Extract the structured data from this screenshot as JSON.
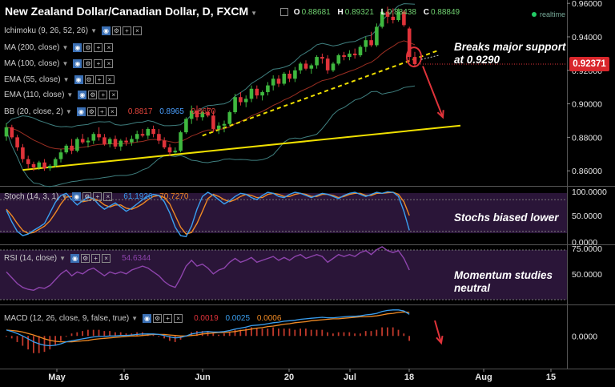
{
  "header": {
    "title": "New Zealand Dollar/Canadian Dollar, D, FXCM",
    "ohlc": [
      {
        "key": "O",
        "value": "0.88681"
      },
      {
        "key": "H",
        "value": "0.89321"
      },
      {
        "key": "L",
        "value": "0.88438"
      },
      {
        "key": "C",
        "value": "0.88849"
      }
    ],
    "realtime": "realtime"
  },
  "indicators": [
    {
      "label": "Ichimoku (9, 26, 52, 26)"
    },
    {
      "label": "MA (200, close)"
    },
    {
      "label": "MA (100, close)"
    },
    {
      "label": "EMA (55, close)"
    },
    {
      "label": "EMA (110, close)"
    },
    {
      "label": "BB (20, close, 2)",
      "values": [
        "0.8817",
        "0.8965",
        "0.8670"
      ],
      "colors": [
        "#e8463c",
        "#4aa0ff",
        "#e8463c"
      ]
    }
  ],
  "price_badge": "0.92371",
  "annotations": {
    "support": [
      "Breaks major support",
      "at 0.9290"
    ],
    "stoch": [
      "Stochs biased lower"
    ],
    "momentum": [
      "Momentum studies",
      "neutral"
    ]
  },
  "colors": {
    "up_candle": "#3fb83f",
    "down_candle": "#e0333a",
    "trendline": "#f0e000",
    "bb": "#3f7f7f",
    "ema": "#c0392b",
    "stoch_k": "#3a9ff0",
    "stoch_d": "#f08a24",
    "rsi": "#8e44ad",
    "macd": "#3a9ff0",
    "signal": "#f08a24",
    "hist": "#c0392b",
    "arrow": "#e0333a",
    "panel_bg": "#2a1538"
  },
  "chart_data": [
    {
      "type": "candlestick",
      "title": "New Zealand Dollar/Canadian Dollar, D, FXCM",
      "x_ticks": [
        "May",
        "16",
        "Jun",
        "20",
        "Jul",
        "18",
        "Aug",
        "15"
      ],
      "y_ticks": [
        "0.86000",
        "0.88000",
        "0.90000",
        "0.92000",
        "0.94000",
        "0.96000"
      ],
      "ylim": [
        0.851,
        0.962
      ],
      "last_price": 0.92371,
      "candles": [
        [
          0.8805,
          0.8885,
          0.878,
          0.886
        ],
        [
          0.886,
          0.8875,
          0.879,
          0.88
        ],
        [
          0.88,
          0.8815,
          0.872,
          0.874
        ],
        [
          0.874,
          0.876,
          0.865,
          0.867
        ],
        [
          0.867,
          0.869,
          0.8615,
          0.864
        ],
        [
          0.864,
          0.8655,
          0.86,
          0.862
        ],
        [
          0.862,
          0.866,
          0.8605,
          0.865
        ],
        [
          0.865,
          0.867,
          0.86,
          0.8615
        ],
        [
          0.8615,
          0.864,
          0.86,
          0.863
        ],
        [
          0.863,
          0.868,
          0.862,
          0.867
        ],
        [
          0.867,
          0.873,
          0.865,
          0.871
        ],
        [
          0.871,
          0.876,
          0.87,
          0.875
        ],
        [
          0.875,
          0.879,
          0.87,
          0.872
        ],
        [
          0.872,
          0.88,
          0.871,
          0.879
        ],
        [
          0.879,
          0.882,
          0.876,
          0.877
        ],
        [
          0.877,
          0.88,
          0.874,
          0.878
        ],
        [
          0.878,
          0.883,
          0.876,
          0.882
        ],
        [
          0.882,
          0.886,
          0.878,
          0.88
        ],
        [
          0.88,
          0.882,
          0.875,
          0.876
        ],
        [
          0.876,
          0.88,
          0.874,
          0.879
        ],
        [
          0.879,
          0.881,
          0.873,
          0.8745
        ],
        [
          0.8745,
          0.879,
          0.872,
          0.878
        ],
        [
          0.878,
          0.88,
          0.875,
          0.877
        ],
        [
          0.877,
          0.881,
          0.875,
          0.879
        ],
        [
          0.879,
          0.884,
          0.877,
          0.882
        ],
        [
          0.882,
          0.885,
          0.88,
          0.881
        ],
        [
          0.881,
          0.886,
          0.879,
          0.885
        ],
        [
          0.885,
          0.887,
          0.88,
          0.882
        ],
        [
          0.882,
          0.885,
          0.876,
          0.878
        ],
        [
          0.878,
          0.88,
          0.873,
          0.874
        ],
        [
          0.874,
          0.876,
          0.869,
          0.871
        ],
        [
          0.871,
          0.874,
          0.87,
          0.872
        ],
        [
          0.872,
          0.884,
          0.871,
          0.883
        ],
        [
          0.883,
          0.892,
          0.882,
          0.891
        ],
        [
          0.891,
          0.899,
          0.888,
          0.896
        ],
        [
          0.896,
          0.899,
          0.89,
          0.892
        ],
        [
          0.892,
          0.896,
          0.89,
          0.895
        ],
        [
          0.895,
          0.898,
          0.892,
          0.893
        ],
        [
          0.893,
          0.896,
          0.883,
          0.885
        ],
        [
          0.885,
          0.889,
          0.882,
          0.887
        ],
        [
          0.887,
          0.89,
          0.883,
          0.888
        ],
        [
          0.888,
          0.896,
          0.887,
          0.895
        ],
        [
          0.895,
          0.906,
          0.894,
          0.904
        ],
        [
          0.904,
          0.907,
          0.899,
          0.901
        ],
        [
          0.901,
          0.905,
          0.898,
          0.903
        ],
        [
          0.903,
          0.911,
          0.901,
          0.909
        ],
        [
          0.909,
          0.911,
          0.903,
          0.905
        ],
        [
          0.905,
          0.908,
          0.902,
          0.907
        ],
        [
          0.907,
          0.913,
          0.905,
          0.911
        ],
        [
          0.911,
          0.917,
          0.908,
          0.915
        ],
        [
          0.915,
          0.917,
          0.91,
          0.912
        ],
        [
          0.912,
          0.919,
          0.911,
          0.918
        ],
        [
          0.918,
          0.92,
          0.913,
          0.915
        ],
        [
          0.915,
          0.922,
          0.913,
          0.92
        ],
        [
          0.92,
          0.925,
          0.918,
          0.924
        ],
        [
          0.924,
          0.926,
          0.92,
          0.921
        ],
        [
          0.921,
          0.924,
          0.918,
          0.923
        ],
        [
          0.923,
          0.929,
          0.921,
          0.928
        ],
        [
          0.928,
          0.93,
          0.924,
          0.927
        ],
        [
          0.927,
          0.929,
          0.918,
          0.92
        ],
        [
          0.92,
          0.925,
          0.919,
          0.924
        ],
        [
          0.924,
          0.93,
          0.923,
          0.929
        ],
        [
          0.929,
          0.931,
          0.926,
          0.928
        ],
        [
          0.928,
          0.932,
          0.926,
          0.93
        ],
        [
          0.93,
          0.933,
          0.927,
          0.929
        ],
        [
          0.929,
          0.935,
          0.928,
          0.934
        ],
        [
          0.934,
          0.94,
          0.931,
          0.938
        ],
        [
          0.938,
          0.943,
          0.934,
          0.935
        ],
        [
          0.935,
          0.948,
          0.934,
          0.946
        ],
        [
          0.946,
          0.957,
          0.945,
          0.955
        ],
        [
          0.955,
          0.958,
          0.948,
          0.952
        ],
        [
          0.952,
          0.957,
          0.948,
          0.95
        ],
        [
          0.95,
          0.957,
          0.949,
          0.955
        ],
        [
          0.955,
          0.956,
          0.946,
          0.947
        ],
        [
          0.945,
          0.946,
          0.925,
          0.928
        ],
        [
          0.928,
          0.931,
          0.922,
          0.9237
        ]
      ]
    },
    {
      "type": "line",
      "title": "Stoch (14, 3, 1)",
      "values_printed": [
        "61.1926",
        "70.7270"
      ],
      "y_ticks": [
        "100.0000",
        "50.0000",
        "0.0000"
      ],
      "ylim": [
        0,
        100
      ],
      "series": [
        {
          "name": "%K",
          "values": [
            60,
            38,
            20,
            12,
            15,
            22,
            28,
            35,
            55,
            75,
            88,
            92,
            80,
            70,
            78,
            85,
            82,
            70,
            62,
            68,
            74,
            66,
            58,
            64,
            72,
            80,
            86,
            90,
            88,
            76,
            55,
            28,
            12,
            10,
            30,
            62,
            86,
            94,
            88,
            80,
            72,
            78,
            86,
            92,
            90,
            84,
            80,
            88,
            94,
            92,
            86,
            84,
            90,
            94,
            92,
            88,
            84,
            88,
            92,
            90,
            86,
            82,
            88,
            92,
            94,
            90,
            86,
            90,
            94,
            92,
            95,
            94,
            86,
            58,
            22
          ]
        },
        {
          "name": "%D",
          "values": [
            62,
            50,
            35,
            22,
            16,
            18,
            24,
            30,
            40,
            55,
            72,
            85,
            86,
            80,
            76,
            78,
            82,
            78,
            70,
            66,
            70,
            70,
            64,
            62,
            66,
            72,
            80,
            86,
            88,
            84,
            72,
            50,
            28,
            15,
            18,
            35,
            58,
            82,
            90,
            86,
            80,
            76,
            80,
            86,
            90,
            88,
            84,
            84,
            90,
            92,
            90,
            86,
            86,
            90,
            92,
            90,
            86,
            86,
            90,
            90,
            88,
            84,
            86,
            90,
            92,
            92,
            88,
            88,
            92,
            92,
            93,
            94,
            90,
            76,
            50
          ]
        }
      ]
    },
    {
      "type": "line",
      "title": "RSI (14, close)",
      "values_printed": [
        "54.6344"
      ],
      "y_ticks": [
        "75.0000",
        "50.0000"
      ],
      "ylim": [
        20,
        78
      ],
      "series": [
        {
          "name": "RSI",
          "values": [
            52,
            46,
            40,
            36,
            34,
            33,
            36,
            35,
            38,
            44,
            50,
            54,
            48,
            52,
            50,
            54,
            56,
            52,
            48,
            52,
            50,
            52,
            50,
            54,
            56,
            58,
            56,
            52,
            48,
            42,
            38,
            36,
            46,
            58,
            64,
            58,
            60,
            56,
            50,
            54,
            56,
            62,
            66,
            62,
            64,
            67,
            62,
            64,
            66,
            68,
            64,
            67,
            64,
            68,
            70,
            66,
            68,
            70,
            68,
            62,
            66,
            70,
            68,
            70,
            68,
            72,
            74,
            70,
            75,
            78,
            74,
            72,
            74,
            66,
            54
          ]
        }
      ]
    },
    {
      "type": "bar",
      "title": "MACD (12, 26, close, 9, false, true)",
      "values_printed": [
        "0.0019",
        "0.0025",
        "0.0006"
      ],
      "y_ticks": [
        "0.0000"
      ],
      "ylim": [
        -0.006,
        0.0056
      ],
      "series": [
        {
          "name": "MACD",
          "values": [
            0.0012,
            0.0009,
            0.0005,
            0.0,
            -0.0006,
            -0.0012,
            -0.0016,
            -0.0019,
            -0.002,
            -0.0019,
            -0.0016,
            -0.0012,
            -0.001,
            -0.0008,
            -0.0006,
            -0.0004,
            -0.0002,
            -0.0001,
            -0.0001,
            0.0,
            0.0,
            0.0001,
            0.0001,
            0.0002,
            0.0003,
            0.0004,
            0.0004,
            0.0004,
            0.0003,
            0.0001,
            -0.0002,
            -0.0004,
            -0.0003,
            0.0,
            0.0004,
            0.0006,
            0.0008,
            0.0009,
            0.0008,
            0.0008,
            0.0009,
            0.0011,
            0.0014,
            0.0016,
            0.0018,
            0.0021,
            0.0022,
            0.0023,
            0.0025,
            0.0027,
            0.0028,
            0.003,
            0.0031,
            0.0032,
            0.0034,
            0.0035,
            0.0036,
            0.0037,
            0.0038,
            0.0037,
            0.0037,
            0.0038,
            0.0039,
            0.004,
            0.004,
            0.0041,
            0.0043,
            0.0044,
            0.0046,
            0.005,
            0.0052,
            0.0053,
            0.0053,
            0.0051,
            0.0044
          ]
        },
        {
          "name": "Signal",
          "values": [
            0.0012,
            0.0011,
            0.001,
            0.0008,
            0.0005,
            0.0002,
            -0.0002,
            -0.0006,
            -0.0009,
            -0.0011,
            -0.0012,
            -0.0012,
            -0.0012,
            -0.0011,
            -0.001,
            -0.0009,
            -0.0007,
            -0.0006,
            -0.0005,
            -0.0004,
            -0.0003,
            -0.0002,
            -0.0001,
            0.0,
            0.0,
            0.0001,
            0.0002,
            0.0003,
            0.0003,
            0.0003,
            0.0002,
            0.0001,
            0.0,
            0.0,
            0.0001,
            0.0002,
            0.0004,
            0.0005,
            0.0006,
            0.0007,
            0.0007,
            0.0008,
            0.0009,
            0.0011,
            0.0012,
            0.0014,
            0.0016,
            0.0017,
            0.0019,
            0.002,
            0.0022,
            0.0024,
            0.0025,
            0.0027,
            0.0028,
            0.0029,
            0.0031,
            0.0032,
            0.0033,
            0.0034,
            0.0035,
            0.0035,
            0.0036,
            0.0037,
            0.0038,
            0.0039,
            0.0039,
            0.004,
            0.0041,
            0.0043,
            0.0045,
            0.0046,
            0.0048,
            0.0049,
            0.0048
          ]
        }
      ]
    }
  ]
}
